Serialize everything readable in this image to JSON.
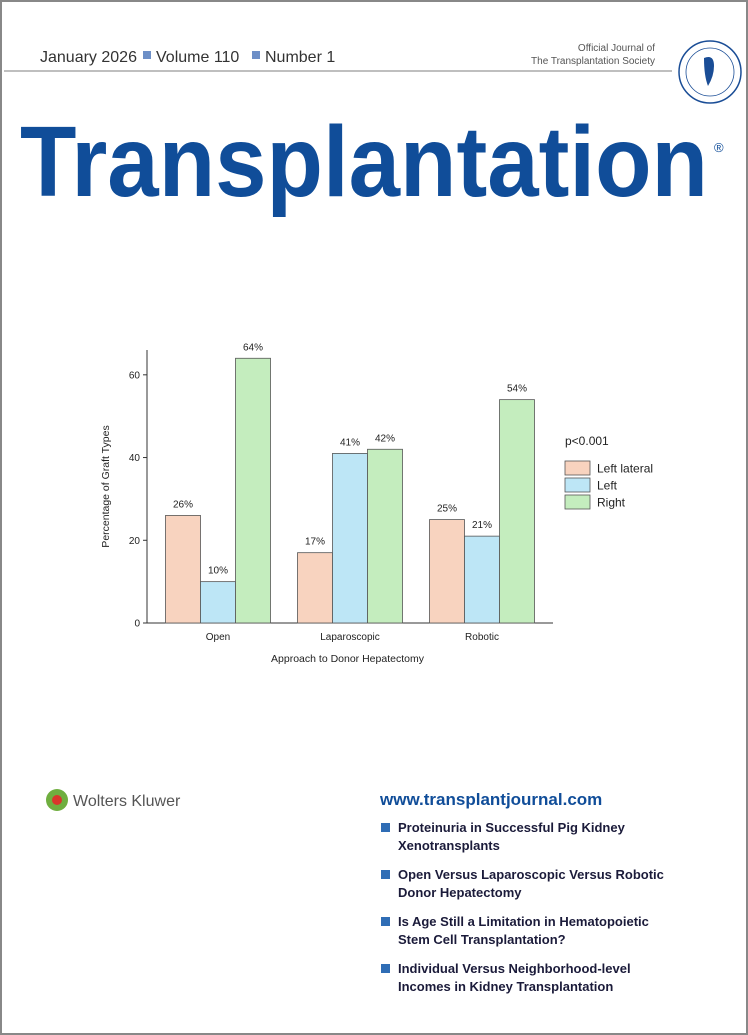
{
  "header": {
    "issue": [
      "January 2026",
      "Volume 110",
      "Number 1"
    ],
    "society": [
      "Official Journal of",
      "The Transplantation Society"
    ]
  },
  "title": "Transplantation",
  "registered": "®",
  "chart_data": {
    "type": "bar",
    "xlabel": "Approach to Donor Hepatectomy",
    "ylabel": "Percentage of Graft Types",
    "categories": [
      "Open",
      "Laparoscopic",
      "Robotic"
    ],
    "series": [
      {
        "name": "Left lateral",
        "color": "#f8d3bf",
        "values": [
          26,
          17,
          25
        ],
        "value_labels": [
          "26%",
          "17%",
          "25%"
        ]
      },
      {
        "name": "Left",
        "color": "#bde6f6",
        "values": [
          10,
          41,
          21
        ],
        "value_labels": [
          "10%",
          "41%",
          "21%"
        ]
      },
      {
        "name": "Right",
        "color": "#c4edbe",
        "values": [
          64,
          42,
          54
        ],
        "value_labels": [
          "64%",
          "42%",
          "54%"
        ]
      }
    ],
    "ylim": [
      0,
      66
    ],
    "yticks": [
      0,
      20,
      40,
      60
    ],
    "grid": false,
    "legend_title": "p<0.001",
    "legend": "right"
  },
  "publisher": "Wolters Kluwer",
  "website": "www.transplantjournal.com",
  "articles": [
    [
      "Proteinuria in Successful Pig Kidney",
      "Xenotransplants"
    ],
    [
      "Open Versus Laparoscopic Versus Robotic",
      "Donor Hepatectomy"
    ],
    [
      "Is Age Still a Limitation in Hematopoietic",
      "Stem Cell Transplantation?"
    ],
    [
      "Individual Versus Neighborhood-level",
      "Incomes in Kidney Transplantation"
    ]
  ]
}
